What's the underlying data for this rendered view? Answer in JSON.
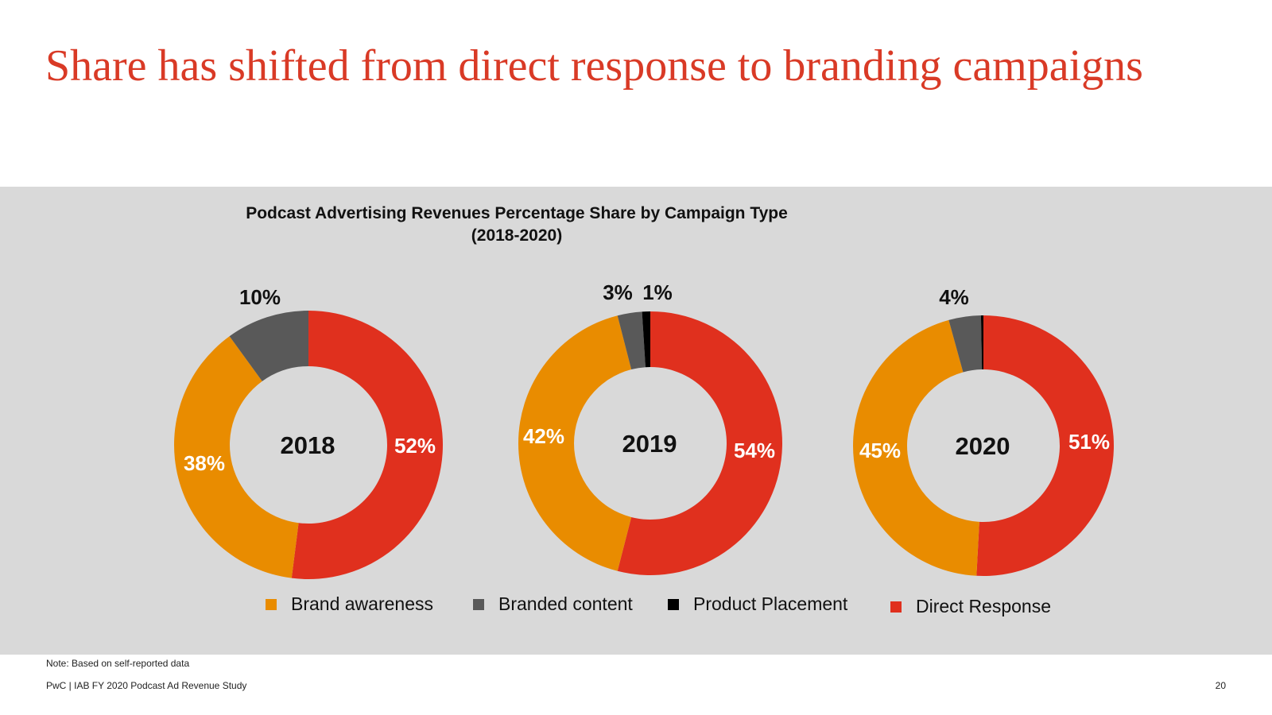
{
  "slide": {
    "title": "Share has shifted from direct response to branding campaigns",
    "note": "Note: Based on self-reported data",
    "footer": "PwC  |  IAB FY 2020 Podcast Ad Revenue Study",
    "page_number": "20"
  },
  "colors": {
    "brand_awareness": "#e98c00",
    "branded_content": "#595959",
    "product_placement": "#000000",
    "direct_response": "#e0301e",
    "panel_background": "#d9d9d9",
    "title_red": "#d93a26"
  },
  "chart_data": {
    "type": "pie",
    "variant": "donut",
    "title": "Podcast Advertising Revenues Percentage Share by Campaign Type",
    "subtitle": "(2018-2020)",
    "series_names": [
      "Brand awareness",
      "Branded content",
      "Product Placement",
      "Direct Response"
    ],
    "legend_position": "bottom",
    "charts": [
      {
        "year": "2018",
        "slices": [
          {
            "name": "Direct Response",
            "value": 52,
            "label": "52%"
          },
          {
            "name": "Brand awareness",
            "value": 38,
            "label": "38%"
          },
          {
            "name": "Branded content",
            "value": 10,
            "label": "10%"
          }
        ]
      },
      {
        "year": "2019",
        "slices": [
          {
            "name": "Direct Response",
            "value": 54,
            "label": "54%"
          },
          {
            "name": "Brand awareness",
            "value": 42,
            "label": "42%"
          },
          {
            "name": "Branded content",
            "value": 3,
            "label": "3%"
          },
          {
            "name": "Product Placement",
            "value": 1,
            "label": "1%"
          }
        ]
      },
      {
        "year": "2020",
        "slices": [
          {
            "name": "Direct Response",
            "value": 51,
            "label": "51%"
          },
          {
            "name": "Brand awareness",
            "value": 45,
            "label": "45%"
          },
          {
            "name": "Branded content",
            "value": 4,
            "label": "4%"
          },
          {
            "name": "Product Placement",
            "value": 0.3,
            "label": ""
          }
        ]
      }
    ]
  }
}
